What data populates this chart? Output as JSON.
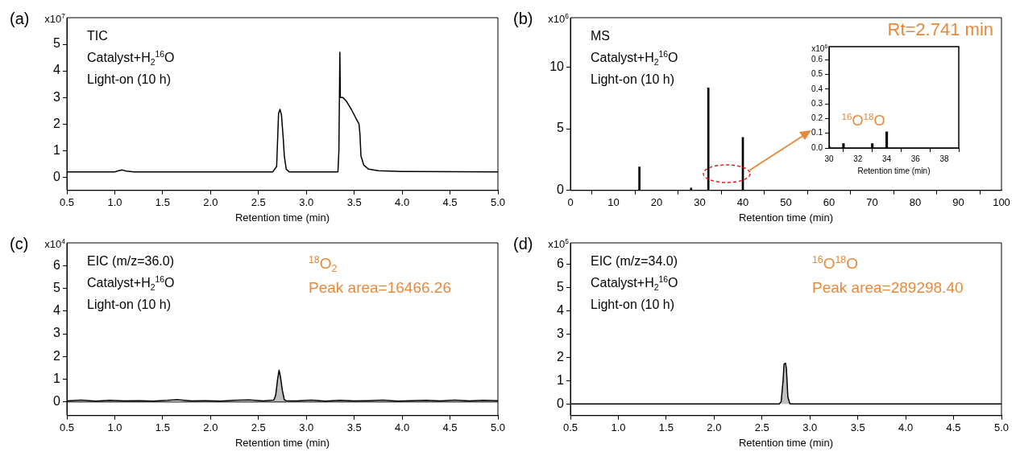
{
  "chart_data": [
    {
      "type": "line",
      "title": "(a)",
      "ylabel": "x10$^{7}$",
      "xlabel": "Retention time (min)",
      "color": "#000000",
      "x": [
        0.5,
        1.0,
        1.04,
        1.08,
        1.12,
        1.2,
        2.65,
        2.69,
        2.71,
        2.725,
        2.74,
        2.76,
        2.77,
        2.79,
        2.82,
        3.33,
        3.34,
        3.35,
        3.355,
        3.38,
        3.42,
        3.47,
        3.52,
        3.55,
        3.56,
        3.57,
        3.6,
        3.65,
        3.75,
        4.0,
        5.0
      ],
      "values": [
        0.2,
        0.2,
        0.24,
        0.27,
        0.23,
        0.2,
        0.2,
        0.4,
        2.4,
        2.55,
        2.35,
        1.4,
        0.8,
        0.3,
        0.2,
        0.2,
        1.0,
        4.7,
        3.0,
        3.0,
        2.85,
        2.55,
        2.2,
        2.0,
        1.6,
        0.8,
        0.45,
        0.3,
        0.24,
        0.21,
        0.2
      ],
      "xlim": [
        0.5,
        5.0
      ],
      "xticks": [
        0.5,
        {
          "value": 1,
          "label": "1.0"
        },
        1.5,
        {
          "value": 2,
          "label": "2.0"
        },
        2.5,
        {
          "value": 3,
          "label": "3.0"
        },
        3.5,
        {
          "value": 4,
          "label": "4.0"
        },
        4.5,
        {
          "value": 5,
          "label": "5.0"
        }
      ],
      "ylim": [
        -0.5,
        6
      ],
      "yticks": [
        0,
        1,
        2,
        3,
        4,
        5
      ],
      "annotations": [
        "TIC",
        "Catalyst+H$_{2}$$^{16}$O",
        "Light-on (10 h)"
      ]
    },
    {
      "type": "bar",
      "title": "(b)",
      "ylabel": "x10$^{6}$",
      "xlabel": "Retention time (min)",
      "color": "#000000",
      "x": [
        16,
        28,
        32,
        34,
        40
      ],
      "values": [
        1.9,
        0.2,
        8.3,
        null,
        4.3
      ],
      "xlim": [
        0,
        100
      ],
      "xticks": [
        0,
        10,
        20,
        30,
        40,
        50,
        60,
        70,
        80,
        90,
        100
      ],
      "ylim": [
        0,
        14
      ],
      "yticks": [
        0,
        5,
        10
      ],
      "annotations": [
        "MS",
        "Catalyst+H$_{2}$$^{16}$O",
        "Light-on (10 h)",
        "Rt=2.741 min"
      ]
    },
    {
      "type": "bar",
      "ylabel": "x10$^{6}$",
      "xlabel": "Retention time (min)",
      "color": "#000000",
      "x": [
        30,
        31,
        32,
        33,
        34
      ],
      "values": [
        0.01,
        0.03,
        null,
        0.03,
        0.11
      ],
      "xlim": [
        30,
        39
      ],
      "xticks": [
        30,
        32,
        34,
        36,
        38
      ],
      "ylim": [
        0,
        0.69
      ],
      "yticks": [
        {
          "value": 0,
          "label": "0.0"
        },
        0.1,
        0.2,
        0.3,
        0.4,
        0.5,
        0.6
      ],
      "annotations": [
        {
          "text": "$^{16}$O$^{18}$O",
          "x": 34,
          "y": 0.11
        }
      ]
    },
    {
      "type": "line",
      "title": "(c)",
      "ylabel": "x10$^{4}$",
      "xlabel": "Retention time (min)",
      "series": [
        {
          "type": "line",
          "color": "#000000",
          "x": [
            0.5,
            0.65,
            0.8,
            0.95,
            1.1,
            1.25,
            1.4,
            1.55,
            1.65,
            1.8,
            1.95,
            2.1,
            2.25,
            2.4,
            2.55,
            2.66,
            2.68,
            2.7,
            2.715,
            2.73,
            2.75,
            2.77,
            2.79,
            2.9,
            3.05,
            3.2,
            3.35,
            3.5,
            3.65,
            3.8,
            3.95,
            4.1,
            4.25,
            4.4,
            4.55,
            4.7,
            4.85,
            5.0
          ],
          "values": [
            0.05,
            0.08,
            0.04,
            0.07,
            0.05,
            0.06,
            0.04,
            0.07,
            0.1,
            0.05,
            0.06,
            0.04,
            0.07,
            0.09,
            0.05,
            0.08,
            0.3,
            1.0,
            1.4,
            1.1,
            0.5,
            0.1,
            0.06,
            0.05,
            0.08,
            0.04,
            0.07,
            0.05,
            0.06,
            0.08,
            0.04,
            0.06,
            0.07,
            0.05,
            0.08,
            0.05,
            0.07,
            0.06
          ]
        },
        {
          "type": "area",
          "color": "#c0c0c0",
          "x": [
            2.66,
            2.68,
            2.7,
            2.715,
            2.73,
            2.75,
            2.77,
            2.79
          ],
          "values": [
            0.08,
            0.3,
            1.0,
            1.4,
            1.1,
            0.5,
            0.1,
            0.06
          ]
        }
      ],
      "xlim": [
        0.5,
        5.0
      ],
      "xticks": [
        0.5,
        {
          "value": 1,
          "label": "1.0"
        },
        1.5,
        {
          "value": 2,
          "label": "2.0"
        },
        2.5,
        {
          "value": 3,
          "label": "3.0"
        },
        3.5,
        {
          "value": 4,
          "label": "4.0"
        },
        4.5,
        {
          "value": 5,
          "label": "5.0"
        }
      ],
      "ylim": [
        -0.6,
        7
      ],
      "yticks": [
        0,
        1,
        2,
        3,
        4,
        5,
        6
      ],
      "ref_lines": [
        {
          "axis": "y",
          "value": 0,
          "color": "#000000"
        }
      ],
      "annotations": [
        "EIC (m/z=36.0)",
        "Catalyst+H$_{2}$$^{16}$O",
        "Light-on (10 h)",
        "$^{18}$O$_{2}$",
        "Peak area=16466.26"
      ]
    },
    {
      "type": "line",
      "title": "(d)",
      "ylabel": "x10$^{5}$",
      "xlabel": "Retention time (min)",
      "series": [
        {
          "type": "line",
          "color": "#000000",
          "x": [
            0.5,
            2.68,
            2.7,
            2.72,
            2.73,
            2.745,
            2.755,
            2.77,
            2.79,
            2.8,
            5.0
          ],
          "values": [
            0,
            0,
            0.1,
            1.0,
            1.7,
            1.75,
            1.5,
            0.3,
            0.02,
            0,
            0
          ]
        },
        {
          "type": "area",
          "color": "#c0c0c0",
          "x": [
            2.68,
            2.7,
            2.72,
            2.73,
            2.745,
            2.755,
            2.77,
            2.79,
            2.8
          ],
          "values": [
            0,
            0.1,
            1.0,
            1.7,
            1.75,
            1.5,
            0.3,
            0.02,
            0
          ]
        }
      ],
      "xlim": [
        0.5,
        5.0
      ],
      "xticks": [
        0.5,
        {
          "value": 1,
          "label": "1.0"
        },
        1.5,
        {
          "value": 2,
          "label": "2.0"
        },
        2.5,
        {
          "value": 3,
          "label": "3.0"
        },
        3.5,
        {
          "value": 4,
          "label": "4.0"
        },
        4.5,
        {
          "value": 5,
          "label": "5.0"
        }
      ],
      "ylim": [
        -0.5,
        6.9
      ],
      "yticks": [
        0,
        1,
        2,
        3,
        4,
        5,
        6
      ],
      "annotations": [
        "EIC (m/z=34.0)",
        "Catalyst+H$_{2}$$^{16}$O",
        "Light-on (10 h)",
        "$^{16}$O$^{18}$O",
        "Peak area=289298.40"
      ]
    }
  ]
}
